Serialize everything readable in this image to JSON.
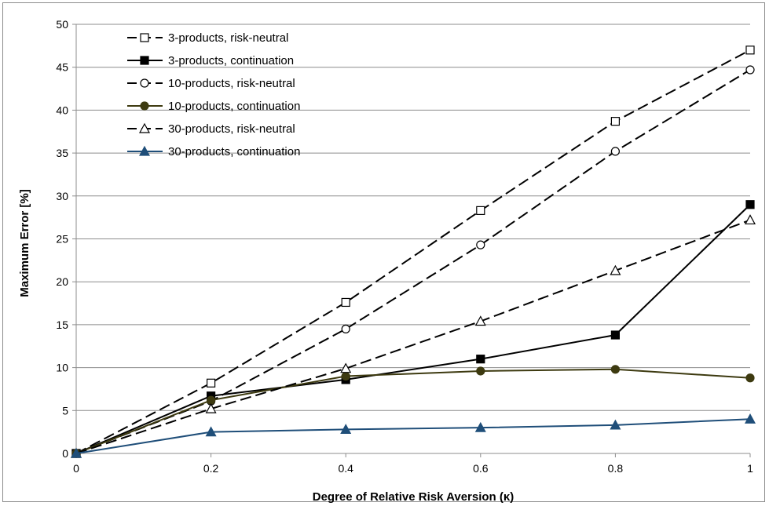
{
  "chart_data": {
    "type": "line",
    "title": "",
    "xlabel": "Degree of Relative Risk Aversion (κ)",
    "ylabel": "Maximum Error [%]",
    "x": [
      0,
      0.2,
      0.4,
      0.6,
      0.8,
      1
    ],
    "x_tick_labels": [
      "0",
      "0.2",
      "0.4",
      "0.6",
      "0.8",
      "1"
    ],
    "xlim": [
      0,
      1
    ],
    "ylim": [
      0,
      50
    ],
    "y_ticks": [
      0,
      5,
      10,
      15,
      20,
      25,
      30,
      35,
      40,
      45,
      50
    ],
    "grid": "horizontal",
    "legend_position": "top-left",
    "series": [
      {
        "name": "3-products, risk-neutral",
        "values": [
          0,
          8.2,
          17.6,
          28.3,
          38.7,
          47.0
        ],
        "color": "#000000",
        "dash": "dashed",
        "marker": "square-open"
      },
      {
        "name": "3-products, continuation",
        "values": [
          0,
          6.7,
          8.6,
          11.0,
          13.8,
          29.0
        ],
        "color": "#000000",
        "dash": "solid",
        "marker": "square-filled"
      },
      {
        "name": "10-products, risk-neutral",
        "values": [
          0,
          6.1,
          14.5,
          24.3,
          35.2,
          44.7
        ],
        "color": "#000000",
        "dash": "dashed",
        "marker": "circle-open"
      },
      {
        "name": "10-products, continuation",
        "values": [
          0,
          6.2,
          9.0,
          9.6,
          9.8,
          8.8
        ],
        "color": "#3d3a10",
        "dash": "solid",
        "marker": "circle-filled"
      },
      {
        "name": "30-products, risk-neutral",
        "values": [
          0,
          5.2,
          9.9,
          15.4,
          21.3,
          27.2
        ],
        "color": "#000000",
        "dash": "dashed",
        "marker": "triangle-open"
      },
      {
        "name": "30-products, continuation",
        "values": [
          0,
          2.5,
          2.8,
          3.0,
          3.3,
          4.0
        ],
        "color": "#1f4e79",
        "dash": "solid",
        "marker": "triangle-filled"
      }
    ]
  }
}
